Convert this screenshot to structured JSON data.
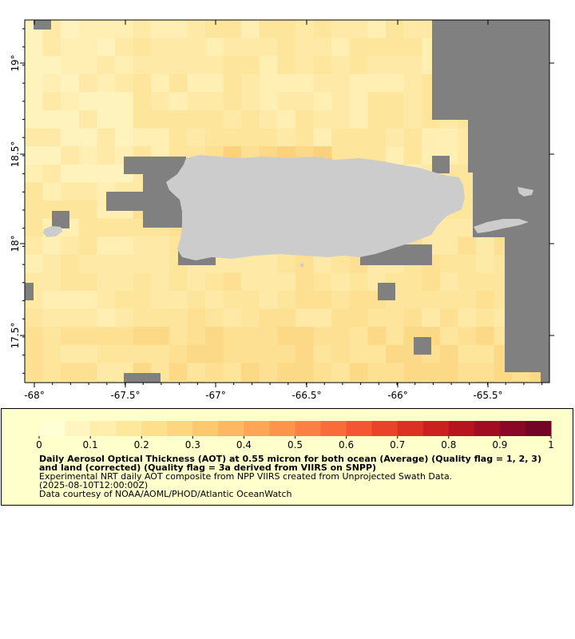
{
  "map": {
    "y_ticks": [
      "19°",
      "18.5°",
      "18°",
      "17.5°"
    ],
    "x_ticks": [
      "-68°",
      "-67.5°",
      "-67°",
      "-66.5°",
      "-66°",
      "-65.5°"
    ],
    "colors": {
      "no_data": "#808080",
      "land": "#cccccc",
      "low_aot": "#fff0b0",
      "mid_aot": "#fde08a",
      "high_aot": "#f8c870"
    }
  },
  "legend": {
    "ticks": [
      "0",
      "0.1",
      "0.2",
      "0.3",
      "0.4",
      "0.5",
      "0.6",
      "0.7",
      "0.8",
      "0.9",
      "1"
    ],
    "colorscale": [
      "#ffffd4",
      "#fff5c0",
      "#ffeead",
      "#fee89c",
      "#fee08c",
      "#fed67e",
      "#fec86e",
      "#feb861",
      "#fea655",
      "#fd944c",
      "#fc8043",
      "#f96b3b",
      "#f45634",
      "#ea432c",
      "#dd3025",
      "#cc1f20",
      "#b8141f",
      "#a10c22",
      "#8a0825",
      "#740526"
    ],
    "title": "Daily Aerosol Optical Thickness (AOT) at 0.55 micron for both ocean (Average) (Quality flag = 1, 2, 3) and land (corrected) (Quality flag = 3a derived from VIIRS on SNPP)",
    "subtitle": "Experimental NRT daily AOT composite from NPP VIIRS created from Unprojected Swath Data.",
    "date": "(2025-08-10T12:00:00Z)",
    "credit": "Data courtesy of NOAA/AOML/PHOD/Atlantic OceanWatch"
  }
}
